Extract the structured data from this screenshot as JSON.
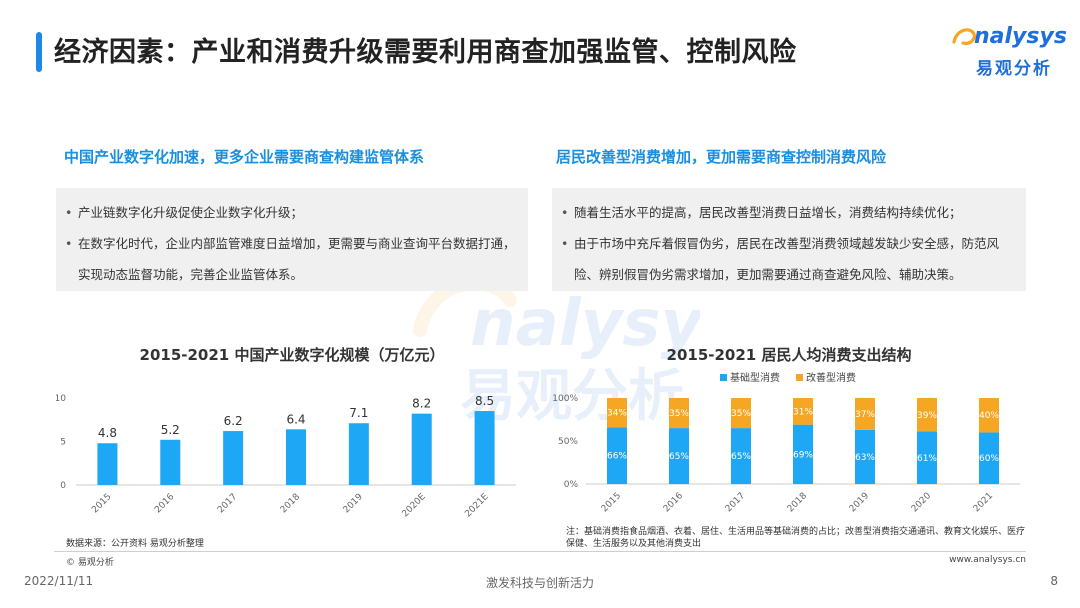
{
  "page": {
    "title": "经济因素：产业和消费升级需要利用商查加强监管、控制风险"
  },
  "logo": {
    "en": "nalysys",
    "cn": "易观分析",
    "brand_color": "#1e6fd9"
  },
  "left_section": {
    "heading": "中国产业数字化加速，更多企业需要商查构建监管体系",
    "bullets": [
      "产业链数字化升级促使企业数字化升级；",
      "在数字化时代，企业内部监管难度日益增加，更需要与商业查询平台数据打通，实现动态监督功能，完善企业监管体系。"
    ]
  },
  "right_section": {
    "heading": "居民改善型消费增加，更加需要商查控制消费风险",
    "bullets": [
      "随着生活水平的提高，居民改善型消费日益增长，消费结构持续优化；",
      "由于市场中充斥着假冒伪劣，居民在改善型消费领域越发缺少安全感，防范风险、辨别假冒伪劣需求增加，更加需要通过商查避免风险、辅助决策。"
    ]
  },
  "chart_data": [
    {
      "type": "bar",
      "title": "2015-2021 中国产业数字化规模（万亿元）",
      "categories": [
        "2015",
        "2016",
        "2017",
        "2018",
        "2019",
        "2020E",
        "2021E"
      ],
      "values": [
        4.8,
        5.2,
        6.2,
        6.4,
        7.1,
        8.2,
        8.5
      ],
      "value_labels": [
        "4.8",
        "5.2",
        "6.2",
        "6.4",
        "7.1",
        "8.2",
        "8.5"
      ],
      "yticks": [
        "0",
        "5",
        "10"
      ],
      "ylim": [
        0,
        10
      ],
      "color": "#1ea7f5"
    },
    {
      "type": "bar",
      "stacked": true,
      "title": "2015-2021 居民人均消费支出结构",
      "categories": [
        "2015",
        "2016",
        "2017",
        "2018",
        "2019",
        "2020",
        "2021"
      ],
      "series": [
        {
          "name": "基础型消费",
          "values": [
            66,
            65,
            65,
            69,
            63,
            61,
            60
          ],
          "labels": [
            "66%",
            "65%",
            "65%",
            "69%",
            "63%",
            "61%",
            "60%"
          ],
          "color": "#1ea7f5"
        },
        {
          "name": "改善型消费",
          "values": [
            34,
            35,
            35,
            31,
            37,
            39,
            40
          ],
          "labels": [
            "34%",
            "35%",
            "35%",
            "31%",
            "37%",
            "39%",
            "40%"
          ],
          "color": "#f5a623"
        }
      ],
      "yticks": [
        "0%",
        "50%",
        "100%"
      ],
      "ylim": [
        0,
        100
      ],
      "legend": "top"
    }
  ],
  "source": "数据来源：公开资料 易观分析整理",
  "note": "注：基础消费指食品烟酒、衣着、居住、生活用品等基础消费的占比；改善型消费指交通通讯、教育文化娱乐、医疗保健、生活服务以及其他消费支出",
  "footer": {
    "copyright": "© 易观分析",
    "website": "www.analysys.cn",
    "date": "2022/11/11",
    "slogan": "激发科技与创新活力",
    "page_number": "8"
  }
}
